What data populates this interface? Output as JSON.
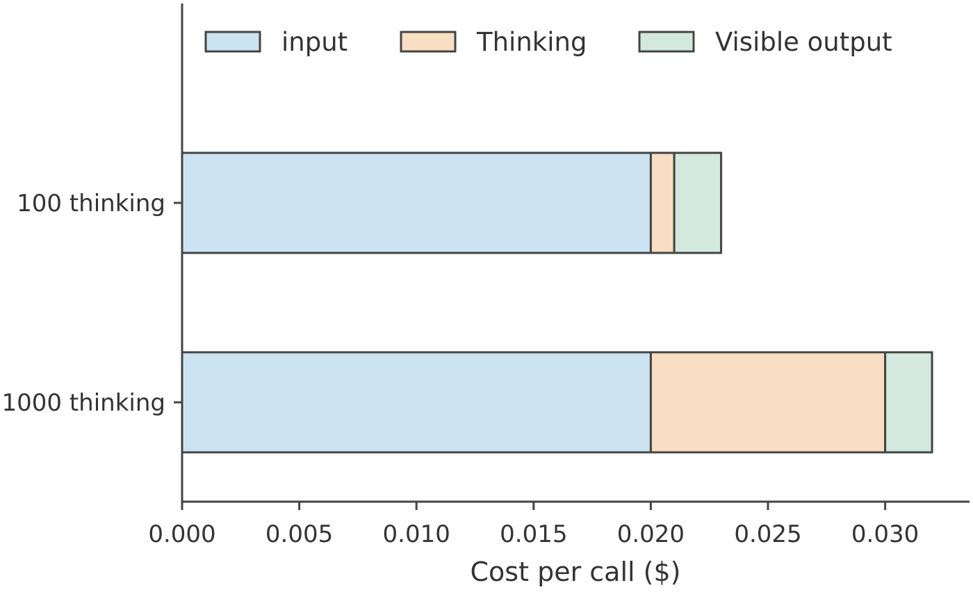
{
  "chart_data": {
    "type": "bar",
    "orientation": "horizontal",
    "stacked": true,
    "categories": [
      "100 thinking",
      "1000 thinking"
    ],
    "series": [
      {
        "name": "input",
        "values": [
          0.02,
          0.02
        ],
        "color": "#cce3f2"
      },
      {
        "name": "Thinking",
        "values": [
          0.001,
          0.01
        ],
        "color": "#f8dec2"
      },
      {
        "name": "Visible output",
        "values": [
          0.002,
          0.002
        ],
        "color": "#d3e9dd"
      }
    ],
    "title": "",
    "xlabel": "Cost per call ($)",
    "ylabel": "",
    "xlim": [
      0,
      0.0336
    ],
    "xticks": [
      "0.000",
      "0.005",
      "0.010",
      "0.015",
      "0.020",
      "0.025",
      "0.030"
    ],
    "grid": false,
    "legend_position": "top",
    "edge_color": "#444444"
  }
}
